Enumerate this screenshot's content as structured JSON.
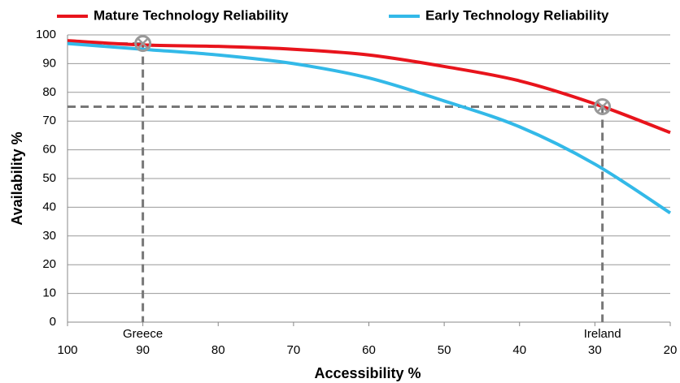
{
  "chart_data": {
    "type": "line",
    "x_label": "Accessibility %",
    "y_label": "Availability %",
    "x": [
      100,
      90,
      80,
      70,
      60,
      50,
      40,
      30,
      20
    ],
    "series": [
      {
        "name": "Mature Technology Reliability",
        "color": "#e8141c",
        "values": [
          98,
          96.5,
          96,
          95,
          93,
          89,
          84,
          76,
          66
        ]
      },
      {
        "name": "Early Technology Reliability",
        "color": "#33b9e8",
        "values": [
          97,
          95,
          93,
          90,
          85,
          77,
          68,
          55,
          38
        ]
      }
    ],
    "annotations": [
      {
        "text": "Greece",
        "x": 90,
        "y": 97
      },
      {
        "text": "Ireland",
        "x": 29,
        "y": 75
      }
    ],
    "xlim": [
      100,
      20
    ],
    "xticks": [
      100,
      90,
      80,
      70,
      60,
      50,
      40,
      30,
      20
    ],
    "ylim": [
      0,
      100
    ],
    "yticks": [
      0,
      10,
      20,
      30,
      40,
      50,
      60,
      70,
      80,
      90,
      100
    ],
    "grid": true
  }
}
